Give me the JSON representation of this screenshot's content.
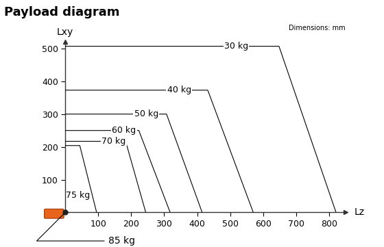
{
  "chart_data": {
    "type": "line",
    "title": "Payload diagram",
    "note": "Dimensions: mm",
    "x_label": "Lz",
    "y_label": "Lxy",
    "xlim": [
      0,
      850
    ],
    "xticks": [
      100,
      200,
      300,
      400,
      500,
      600,
      700,
      800
    ],
    "ylim": [
      0,
      520
    ],
    "yticks": [
      100,
      200,
      300,
      400,
      500
    ],
    "grid": false,
    "series": [
      {
        "name": "30 kg",
        "color": "#000000",
        "x": [
          0,
          648,
          821
        ],
        "values": [
          507,
          507,
          0
        ]
      },
      {
        "name": "40 kg",
        "color": "#000000",
        "x": [
          0,
          432,
          570
        ],
        "values": [
          373,
          373,
          0
        ]
      },
      {
        "name": "50 kg",
        "color": "#000000",
        "x": [
          0,
          307,
          415
        ],
        "values": [
          300,
          300,
          0
        ]
      },
      {
        "name": "60 kg",
        "color": "#000000",
        "x": [
          0,
          223,
          318
        ],
        "values": [
          250,
          250,
          0
        ]
      },
      {
        "name": "70 kg",
        "color": "#000000",
        "x": [
          0,
          183,
          244
        ],
        "values": [
          217,
          217,
          0
        ]
      },
      {
        "name": "75 kg",
        "color": "#000000",
        "x": [
          0,
          44,
          95
        ],
        "values": [
          204,
          204,
          0
        ]
      },
      {
        "name": "85 kg",
        "color": "#000000",
        "x": [
          0
        ],
        "values": [
          0
        ]
      }
    ]
  }
}
